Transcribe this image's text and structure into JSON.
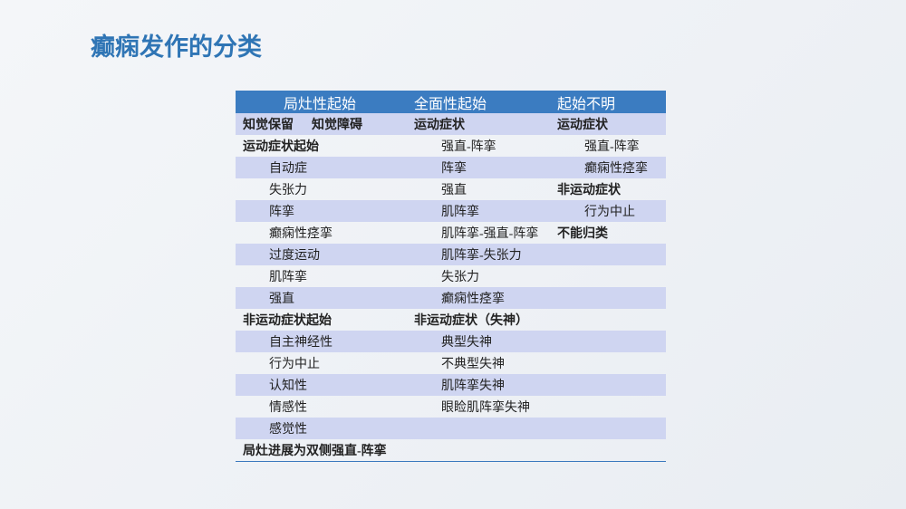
{
  "header": {
    "title": "癫痫发作的分类"
  },
  "table": {
    "header": [
      "局灶性起始",
      "全面性起始",
      "起始不明"
    ],
    "rows": [
      [
        [
          "知觉保留",
          "知觉障碍"
        ],
        "运动症状",
        "运动症状"
      ],
      [
        "运动症状起始",
        "强直-阵挛",
        "强直-阵挛"
      ],
      [
        "自动症",
        "阵挛",
        "癫痫性痉挛"
      ],
      [
        "失张力",
        "强直",
        "非运动症状"
      ],
      [
        "阵挛",
        "肌阵挛",
        "行为中止"
      ],
      [
        "癫痫性痉挛",
        "肌阵挛-强直-阵挛",
        "不能归类"
      ],
      [
        "过度运动",
        "肌阵挛-失张力"
      ],
      [
        "肌阵挛",
        "失张力"
      ],
      [
        "强直",
        "癫痫性痉挛"
      ],
      [
        "非运动症状起始",
        "非运动症状（失神）"
      ],
      [
        "自主神经性",
        "典型失神"
      ],
      [
        "行为中止",
        "不典型失神"
      ],
      [
        "认知性",
        "肌阵挛失神"
      ],
      [
        "情感性",
        "眼睑肌阵挛失神"
      ],
      [
        "感觉性"
      ],
      [
        "局灶进展为双侧强直-阵挛"
      ]
    ]
  }
}
